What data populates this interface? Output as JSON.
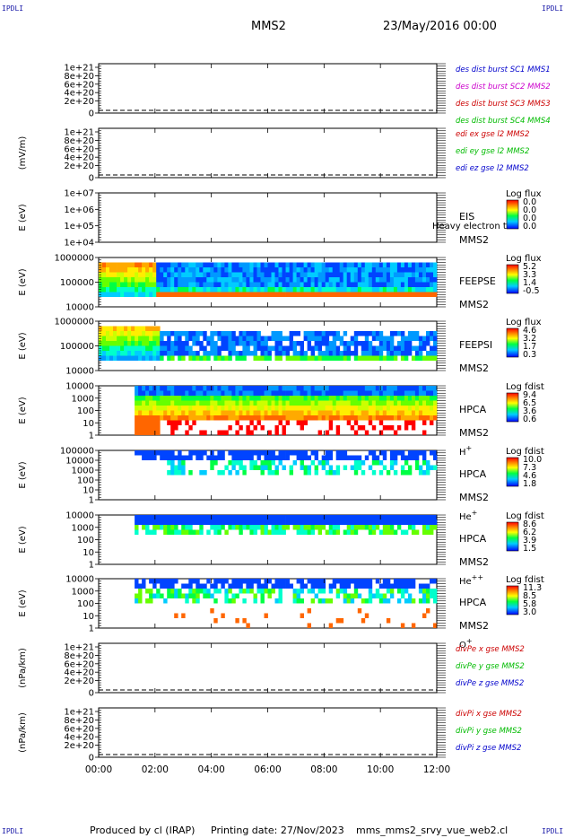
{
  "corner_label": "IPDLI",
  "header": {
    "spacecraft": "MMS2",
    "datetime": "23/May/2016 00:00"
  },
  "footer": {
    "produced": "Produced by cl (IRAP)",
    "printed": "Printing date: 27/Nov/2023",
    "file": "mms_mms2_srvy_vue_web2.cl"
  },
  "colors": {
    "blue": "#0000cc",
    "magenta": "#cc00cc",
    "red": "#cc0000",
    "green": "#00bb00"
  },
  "chart_data": {
    "type": "heatmap",
    "x_ticks": [
      "00:00",
      "02:00",
      "04:00",
      "06:00",
      "08:00",
      "10:00",
      "12:00"
    ],
    "x_range": [
      "00:00",
      "12:00"
    ],
    "panels": [
      {
        "kind": "line",
        "ylabel": "",
        "yticks": [
          "1e+21",
          "8e+20",
          "6e+20",
          "4e+20",
          "2e+20",
          "0"
        ],
        "legend": [
          {
            "text": "des dist burst SC1 MMS1",
            "color": "#0000cc"
          },
          {
            "text": "des dist burst SC2 MMS2",
            "color": "#cc00cc"
          },
          {
            "text": "des dist burst SC3 MMS3",
            "color": "#cc0000"
          },
          {
            "text": "des dist burst SC4 MMS4",
            "color": "#00bb00"
          }
        ]
      },
      {
        "kind": "line",
        "ylabel": "(mV/m)",
        "yticks": [
          "1e+21",
          "8e+20",
          "6e+20",
          "4e+20",
          "2e+20",
          "0"
        ],
        "legend": [
          {
            "text": "edi ex gse l2 MMS2",
            "color": "#cc0000"
          },
          {
            "text": "edi ey gse l2 MMS2",
            "color": "#00bb00"
          },
          {
            "text": "edi ez gse l2 MMS2",
            "color": "#0000cc"
          }
        ]
      },
      {
        "kind": "spec",
        "ylabel": "E (eV)",
        "yticks": [
          "1e+07",
          "1e+06",
          "1e+05",
          "1e+04"
        ],
        "instrument": [
          "EIS",
          "MMS2"
        ],
        "overlay": "Heavy electron tc",
        "cbar_title": "Log flux",
        "cbar_ticks": [
          "0.0",
          "0.0",
          "0.0",
          "0.0"
        ]
      },
      {
        "kind": "spec",
        "ylabel": "E (eV)",
        "yticks": [
          "1000000",
          "100000",
          "10000"
        ],
        "instrument": [
          "FEEPSE",
          "MMS2"
        ],
        "cbar_title": "Log flux",
        "cbar_ticks": [
          "5.2",
          "3.3",
          "1.4",
          "-0.5"
        ]
      },
      {
        "kind": "spec",
        "ylabel": "E (eV)",
        "yticks": [
          "1000000",
          "100000",
          "10000"
        ],
        "instrument": [
          "FEEPSI",
          "MMS2"
        ],
        "cbar_title": "Log flux",
        "cbar_ticks": [
          "4.6",
          "3.2",
          "1.7",
          "0.3"
        ]
      },
      {
        "kind": "spec",
        "ylabel": "E (eV)",
        "yticks": [
          "10000",
          "1000",
          "100",
          "10",
          "1"
        ],
        "instrument": [
          "HPCA",
          "MMS2",
          "H+"
        ],
        "cbar_title": "Log fdist",
        "cbar_ticks": [
          "9.4",
          "6.5",
          "3.6",
          "0.6"
        ]
      },
      {
        "kind": "spec",
        "ylabel": "E (eV)",
        "yticks": [
          "100000",
          "10000",
          "1000",
          "100",
          "10",
          "1"
        ],
        "instrument": [
          "HPCA",
          "MMS2",
          "He+"
        ],
        "cbar_title": "Log fdist",
        "cbar_ticks": [
          "10.0",
          "7.3",
          "4.6",
          "1.8"
        ]
      },
      {
        "kind": "spec",
        "ylabel": "E (eV)",
        "yticks": [
          "10000",
          "1000",
          "100",
          "10",
          "1"
        ],
        "instrument": [
          "HPCA",
          "MMS2",
          "He++"
        ],
        "cbar_title": "Log fdist",
        "cbar_ticks": [
          "8.6",
          "6.2",
          "3.9",
          "1.5"
        ]
      },
      {
        "kind": "spec",
        "ylabel": "E (eV)",
        "yticks": [
          "10000",
          "1000",
          "100",
          "10",
          "1"
        ],
        "instrument": [
          "HPCA",
          "MMS2",
          "O+"
        ],
        "cbar_title": "Log fdist",
        "cbar_ticks": [
          "11.3",
          "8.5",
          "5.8",
          "3.0"
        ]
      },
      {
        "kind": "line",
        "ylabel": "(nPa/km)",
        "yticks": [
          "1e+21",
          "8e+20",
          "6e+20",
          "4e+20",
          "2e+20",
          "0"
        ],
        "legend": [
          {
            "text": "divPe x gse MMS2",
            "color": "#cc0000"
          },
          {
            "text": "divPe y gse MMS2",
            "color": "#00bb00"
          },
          {
            "text": "divPe z gse MMS2",
            "color": "#0000cc"
          }
        ]
      },
      {
        "kind": "line",
        "ylabel": "(nPa/km)",
        "yticks": [
          "1e+21",
          "8e+20",
          "6e+20",
          "4e+20",
          "2e+20",
          "0"
        ],
        "legend": [
          {
            "text": "divPi x gse MMS2",
            "color": "#cc0000"
          },
          {
            "text": "divPi y gse MMS2",
            "color": "#00bb00"
          },
          {
            "text": "divPi z gse MMS2",
            "color": "#0000cc"
          }
        ]
      }
    ]
  }
}
